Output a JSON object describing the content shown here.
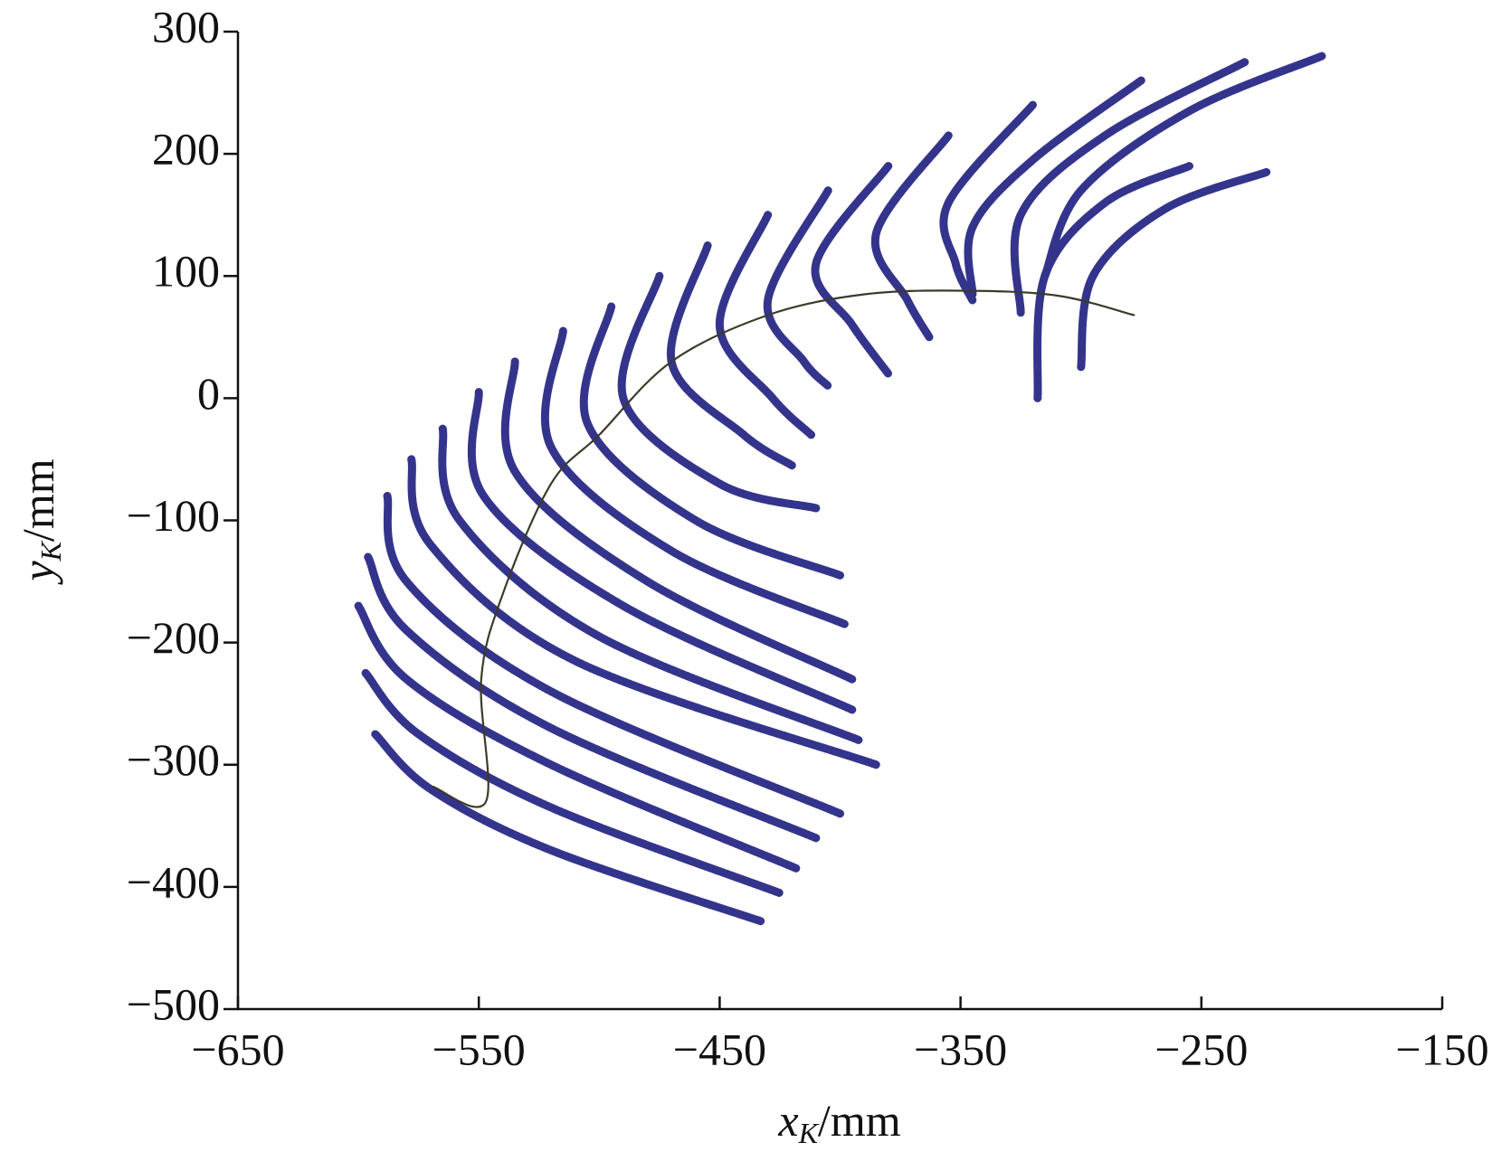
{
  "chart_data": {
    "type": "line",
    "xlabel": {
      "text": "x",
      "sub": "K",
      "unit": "/mm"
    },
    "ylabel": {
      "text": "y",
      "sub": "K",
      "unit": "/mm"
    },
    "xlim": [
      -650,
      -150
    ],
    "xticks": [
      {
        "value": -650,
        "label": "−650"
      },
      {
        "value": -550,
        "label": "−550"
      },
      {
        "value": -450,
        "label": "−450"
      },
      {
        "value": -350,
        "label": "−350"
      },
      {
        "value": -250,
        "label": "−250"
      },
      {
        "value": -150,
        "label": "−150"
      }
    ],
    "ylim": [
      -500,
      300
    ],
    "yticks": [
      300,
      200,
      100,
      0,
      {
        "value": -100,
        "label": "−100"
      },
      {
        "value": -200,
        "label": "−200"
      },
      {
        "value": -300,
        "label": "−300"
      },
      {
        "value": -400,
        "label": "−400"
      },
      {
        "value": -500,
        "label": "−500"
      }
    ],
    "series": [
      {
        "color": "#34348c",
        "x": [
          -593,
          -570,
          -520,
          -433
        ],
        "values": [
          -275,
          -320,
          -370,
          -428
        ]
      },
      {
        "color": "#34348c",
        "x": [
          -597,
          -575,
          -520,
          -425
        ],
        "values": [
          -225,
          -275,
          -335,
          -405
        ]
      },
      {
        "color": "#34348c",
        "x": [
          -600,
          -580,
          -520,
          -418
        ],
        "values": [
          -170,
          -230,
          -300,
          -385
        ]
      },
      {
        "color": "#34348c",
        "x": [
          -596,
          -580,
          -520,
          -410
        ],
        "values": [
          -130,
          -190,
          -270,
          -360
        ]
      },
      {
        "color": "#34348c",
        "x": [
          -588,
          -580,
          -520,
          -400
        ],
        "values": [
          -80,
          -150,
          -240,
          -340
        ]
      },
      {
        "color": "#34348c",
        "x": [
          -578,
          -570,
          -510,
          -385
        ],
        "values": [
          -50,
          -120,
          -215,
          -300
        ]
      },
      {
        "color": "#34348c",
        "x": [
          -565,
          -558,
          -500,
          -392
        ],
        "values": [
          -25,
          -100,
          -195,
          -280
        ]
      },
      {
        "color": "#34348c",
        "x": [
          -550,
          -548,
          -490,
          -395
        ],
        "values": [
          5,
          -80,
          -170,
          -255
        ]
      },
      {
        "color": "#34348c",
        "x": [
          -535,
          -535,
          -480,
          -395
        ],
        "values": [
          30,
          -60,
          -150,
          -230
        ]
      },
      {
        "color": "#34348c",
        "x": [
          -515,
          -520,
          -470,
          -398
        ],
        "values": [
          55,
          -40,
          -125,
          -185
        ]
      },
      {
        "color": "#34348c",
        "x": [
          -495,
          -505,
          -460,
          -400
        ],
        "values": [
          75,
          -20,
          -100,
          -145
        ]
      },
      {
        "color": "#34348c",
        "x": [
          -475,
          -490,
          -450,
          -410
        ],
        "values": [
          100,
          0,
          -70,
          -90
        ]
      },
      {
        "color": "#34348c",
        "x": [
          -455,
          -470,
          -440,
          -420
        ],
        "values": [
          125,
          30,
          -30,
          -55
        ]
      },
      {
        "color": "#34348c",
        "x": [
          -430,
          -450,
          -428,
          -412
        ],
        "values": [
          150,
          60,
          0,
          -30
        ]
      },
      {
        "color": "#34348c",
        "x": [
          -405,
          -430,
          -415,
          -405
        ],
        "values": [
          170,
          80,
          30,
          10
        ]
      },
      {
        "color": "#34348c",
        "x": [
          -380,
          -410,
          -395,
          -380
        ],
        "values": [
          190,
          110,
          60,
          20
        ]
      },
      {
        "color": "#34348c",
        "x": [
          -355,
          -385,
          -372,
          -363
        ],
        "values": [
          215,
          135,
          80,
          50
        ]
      },
      {
        "color": "#34348c",
        "x": [
          -320,
          -355,
          -352,
          -345
        ],
        "values": [
          240,
          160,
          110,
          80
        ]
      },
      {
        "color": "#34348c",
        "x": [
          -275,
          -320,
          -345,
          -345
        ],
        "values": [
          260,
          195,
          140,
          85
        ]
      },
      {
        "color": "#34348c",
        "x": [
          -232,
          -290,
          -325,
          -325
        ],
        "values": [
          275,
          215,
          150,
          70
        ]
      },
      {
        "color": "#34348c",
        "x": [
          -200,
          -255,
          -300,
          -315
        ],
        "values": [
          280,
          235,
          170,
          100
        ]
      },
      {
        "color": "#34348c",
        "x": [
          -255,
          -290,
          -315,
          -318
        ],
        "values": [
          190,
          160,
          100,
          0
        ]
      },
      {
        "color": "#34348c",
        "x": [
          -223,
          -265,
          -295,
          -300
        ],
        "values": [
          185,
          155,
          100,
          25
        ]
      }
    ],
    "trace": {
      "color": "#3b3b2a",
      "x": [
        -569,
        -547,
        -549,
        -540,
        -520,
        -500,
        -470,
        -430,
        -390,
        -350,
        -310,
        -278
      ],
      "values": [
        -318,
        -330,
        -230,
        -160,
        -70,
        -30,
        30,
        68,
        85,
        88,
        84,
        68
      ]
    }
  }
}
